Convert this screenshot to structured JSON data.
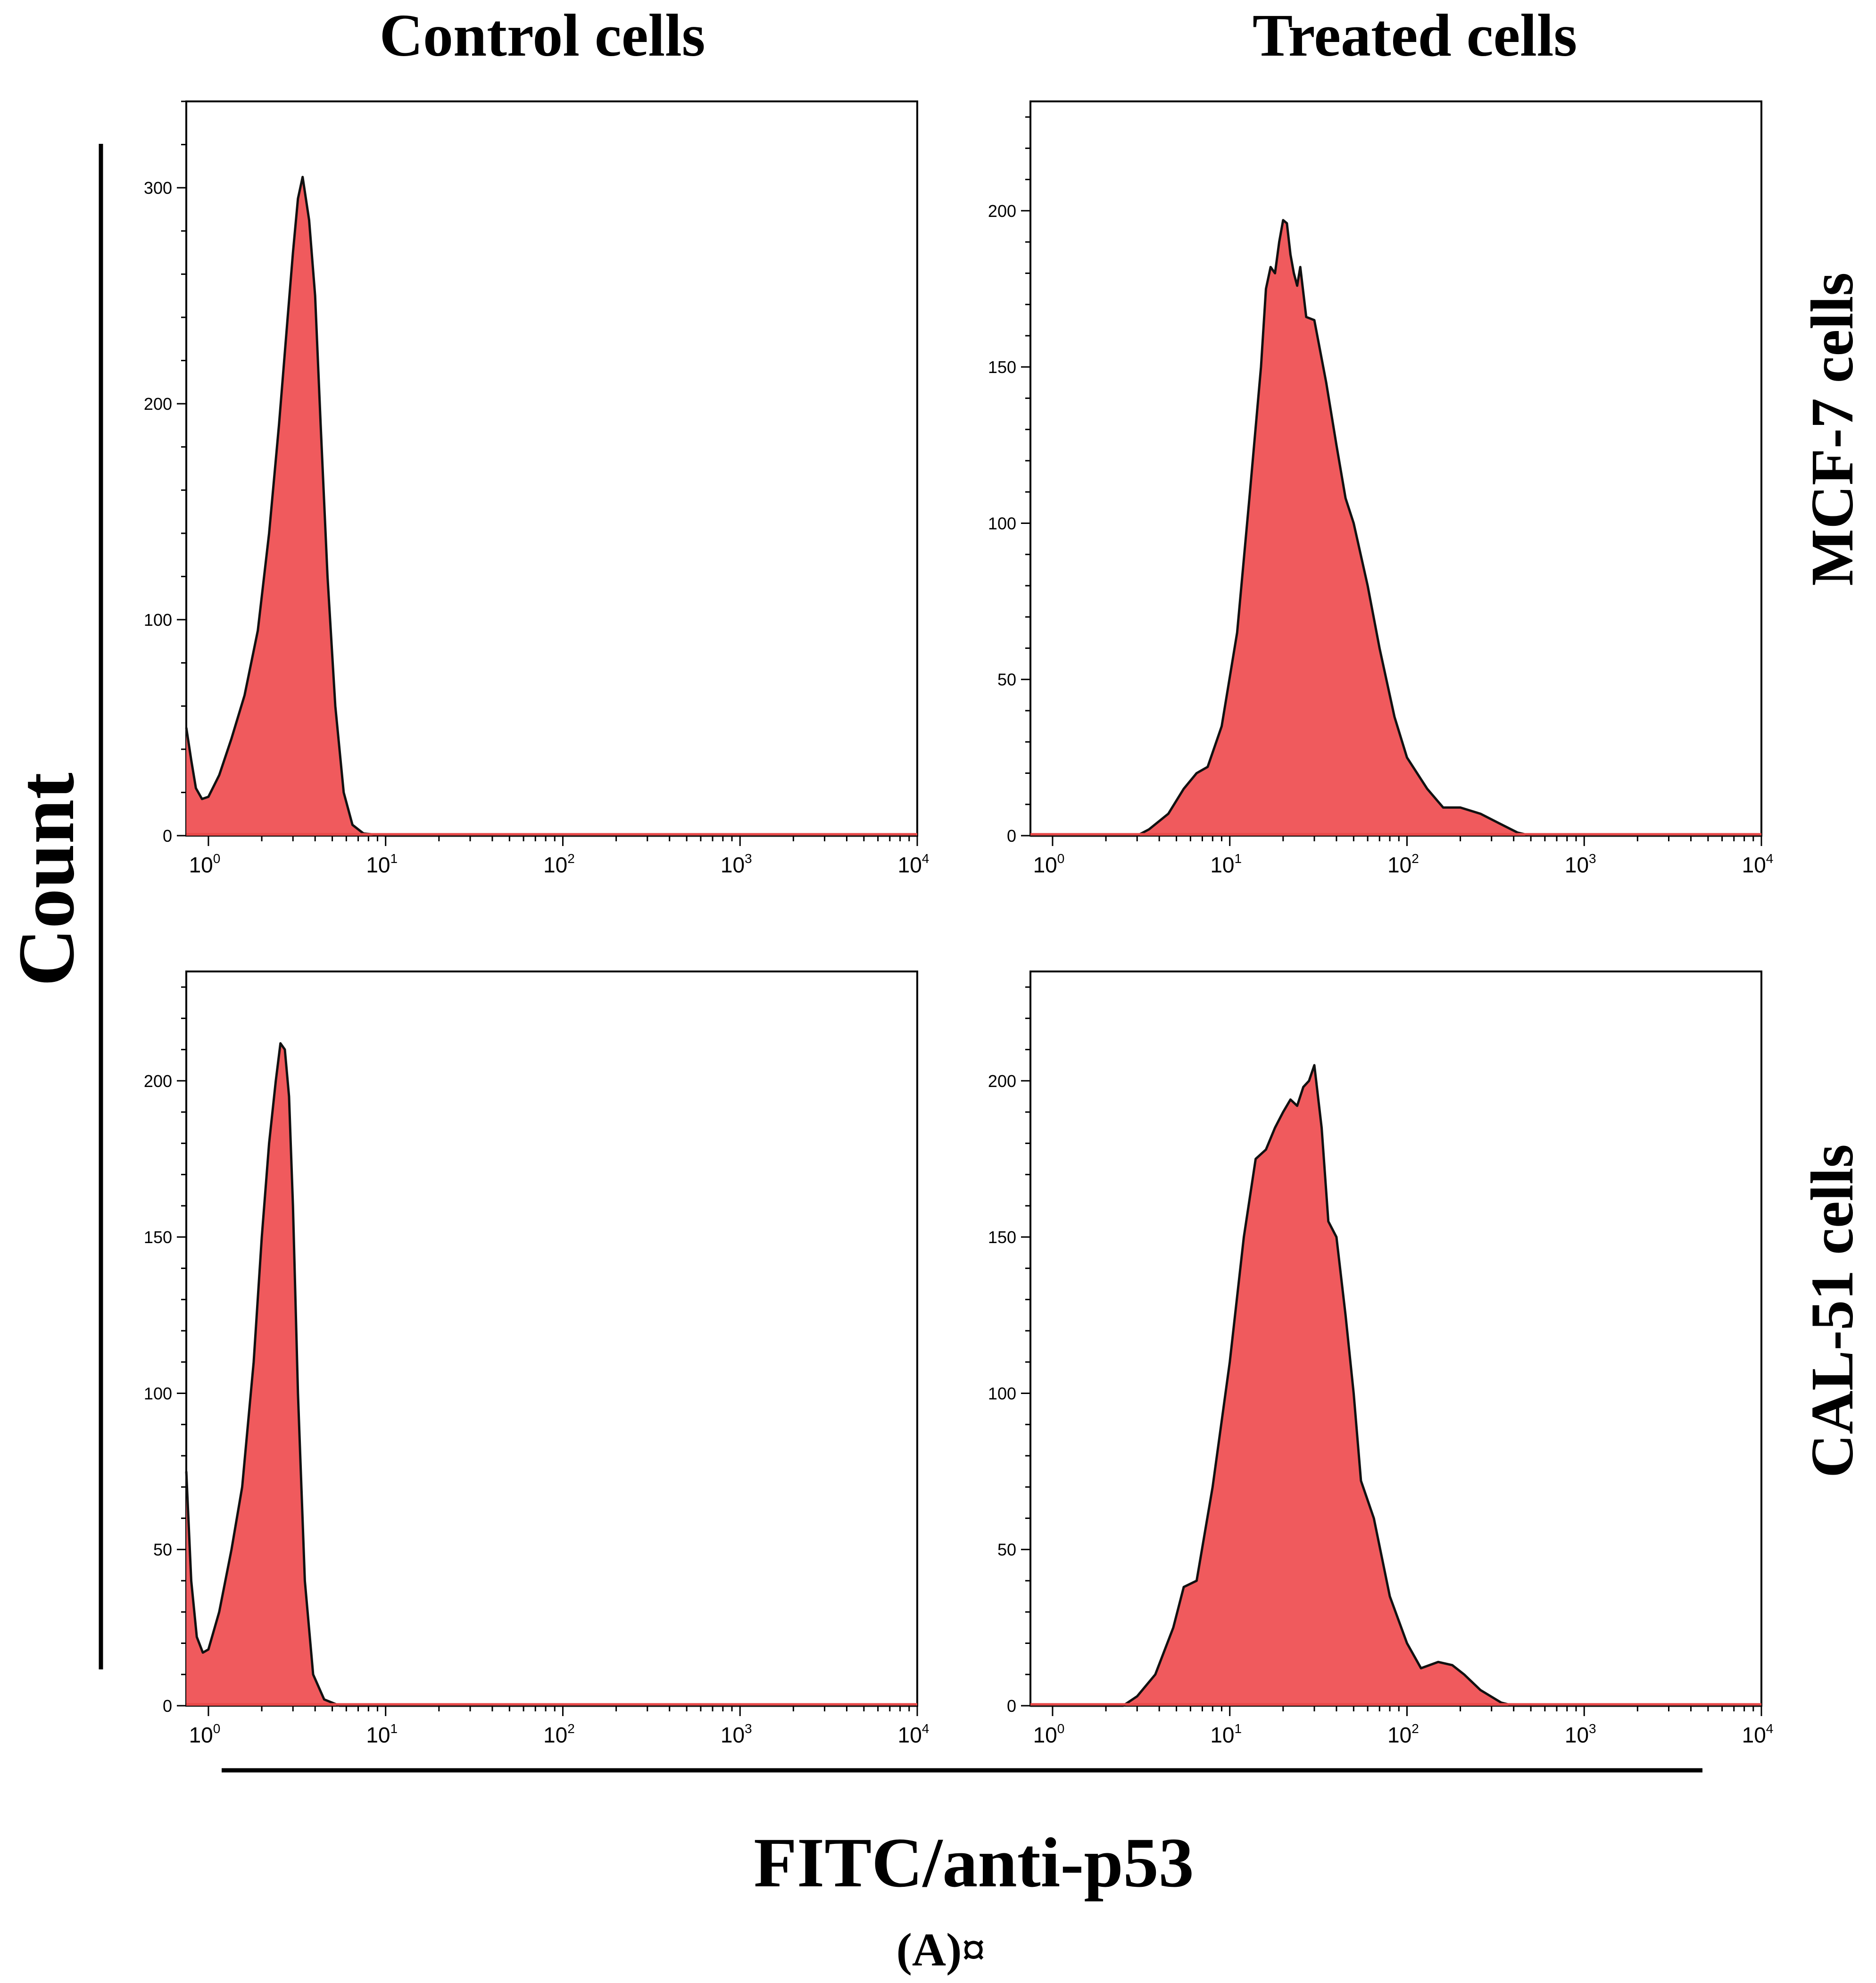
{
  "figure": {
    "column_titles": [
      "Control cells",
      "Treated cells"
    ],
    "row_titles": [
      "MCF-7 cells",
      "CAL-51 cells"
    ],
    "ylabel": "Count",
    "xlabel": "FITC/anti-p53",
    "caption": "(A)¤"
  },
  "colors": {
    "fill": "#f05a5d",
    "stroke": "#111111",
    "axis": "#000000",
    "baseline": "#e84848"
  },
  "chart_data": [
    {
      "type": "area",
      "title": "Control cells",
      "row": "MCF-7 cells",
      "xscale": "log",
      "xlim": [
        0.75,
        10000
      ],
      "ylim": [
        0,
        340
      ],
      "yticks": [
        0,
        100,
        200,
        300
      ],
      "xticks": [
        {
          "value": 1,
          "base": "10",
          "exp": "0"
        },
        {
          "value": 10,
          "base": "10",
          "exp": "1"
        },
        {
          "value": 100,
          "base": "10",
          "exp": "2"
        },
        {
          "value": 1000,
          "base": "10",
          "exp": "3"
        },
        {
          "value": 10000,
          "base": "10",
          "exp": "4"
        }
      ],
      "x": [
        0.75,
        0.8,
        0.85,
        0.92,
        1.0,
        1.15,
        1.35,
        1.6,
        1.9,
        2.2,
        2.5,
        2.8,
        3.0,
        3.2,
        3.4,
        3.7,
        4.0,
        4.3,
        4.7,
        5.2,
        5.8,
        6.5,
        7.5,
        10,
        100,
        1000,
        10000
      ],
      "y": [
        50,
        35,
        22,
        17,
        18,
        28,
        45,
        65,
        95,
        140,
        190,
        240,
        270,
        295,
        305,
        285,
        250,
        190,
        120,
        60,
        20,
        5,
        1,
        0,
        0,
        0,
        0
      ]
    },
    {
      "type": "area",
      "title": "Treated cells",
      "row": "MCF-7 cells",
      "xscale": "log",
      "xlim": [
        0.75,
        10000
      ],
      "ylim": [
        0,
        235
      ],
      "yticks": [
        0,
        50,
        100,
        150,
        200
      ],
      "xticks": [
        {
          "value": 1,
          "base": "10",
          "exp": "0"
        },
        {
          "value": 10,
          "base": "10",
          "exp": "1"
        },
        {
          "value": 100,
          "base": "10",
          "exp": "2"
        },
        {
          "value": 1000,
          "base": "10",
          "exp": "3"
        },
        {
          "value": 10000,
          "base": "10",
          "exp": "4"
        }
      ],
      "x": [
        0.75,
        3.0,
        3.5,
        4.5,
        5.5,
        6.5,
        7.5,
        9,
        11,
        13,
        15,
        16,
        17,
        18,
        19,
        20,
        21,
        22,
        23,
        24,
        25,
        27,
        30,
        35,
        40,
        45,
        50,
        60,
        70,
        85,
        100,
        130,
        160,
        200,
        260,
        330,
        420,
        500,
        10000
      ],
      "y": [
        0,
        0,
        2,
        7,
        15,
        20,
        22,
        35,
        65,
        110,
        150,
        175,
        182,
        180,
        190,
        197,
        196,
        186,
        180,
        176,
        182,
        166,
        165,
        145,
        125,
        108,
        100,
        80,
        60,
        38,
        25,
        15,
        9,
        9,
        7,
        4,
        1,
        0,
        0
      ]
    },
    {
      "type": "area",
      "title": "Control cells",
      "row": "CAL-51 cells",
      "xscale": "log",
      "xlim": [
        0.75,
        10000
      ],
      "ylim": [
        0,
        235
      ],
      "yticks": [
        0,
        50,
        100,
        150,
        200
      ],
      "xticks": [
        {
          "value": 1,
          "base": "10",
          "exp": "0"
        },
        {
          "value": 10,
          "base": "10",
          "exp": "1"
        },
        {
          "value": 100,
          "base": "10",
          "exp": "2"
        },
        {
          "value": 1000,
          "base": "10",
          "exp": "3"
        },
        {
          "value": 10000,
          "base": "10",
          "exp": "4"
        }
      ],
      "x": [
        0.75,
        0.8,
        0.86,
        0.93,
        1.0,
        1.15,
        1.35,
        1.55,
        1.8,
        2.0,
        2.2,
        2.4,
        2.55,
        2.7,
        2.85,
        3.0,
        3.2,
        3.5,
        3.9,
        4.5,
        5.5,
        10,
        100,
        1000,
        10000
      ],
      "y": [
        75,
        40,
        22,
        17,
        18,
        30,
        50,
        70,
        110,
        150,
        180,
        200,
        212,
        210,
        195,
        160,
        100,
        40,
        10,
        2,
        0,
        0,
        0,
        0,
        0
      ]
    },
    {
      "type": "area",
      "title": "Treated cells",
      "row": "CAL-51 cells",
      "xscale": "log",
      "xlim": [
        0.75,
        10000
      ],
      "ylim": [
        0,
        235
      ],
      "yticks": [
        0,
        50,
        100,
        150,
        200
      ],
      "xticks": [
        {
          "value": 1,
          "base": "10",
          "exp": "0"
        },
        {
          "value": 10,
          "base": "10",
          "exp": "1"
        },
        {
          "value": 100,
          "base": "10",
          "exp": "2"
        },
        {
          "value": 1000,
          "base": "10",
          "exp": "3"
        },
        {
          "value": 10000,
          "base": "10",
          "exp": "4"
        }
      ],
      "x": [
        0.75,
        2.5,
        3.0,
        3.8,
        4.8,
        5.5,
        6.5,
        8,
        10,
        12,
        14,
        16,
        18,
        20,
        22,
        24,
        26,
        28,
        30,
        33,
        36,
        40,
        45,
        50,
        55,
        65,
        80,
        100,
        120,
        150,
        180,
        210,
        260,
        340,
        400,
        10000
      ],
      "y": [
        0,
        0,
        3,
        10,
        25,
        38,
        40,
        70,
        110,
        150,
        175,
        178,
        185,
        190,
        194,
        192,
        198,
        200,
        205,
        185,
        155,
        150,
        125,
        100,
        72,
        60,
        35,
        20,
        12,
        14,
        13,
        10,
        5,
        1,
        0,
        0
      ]
    }
  ]
}
